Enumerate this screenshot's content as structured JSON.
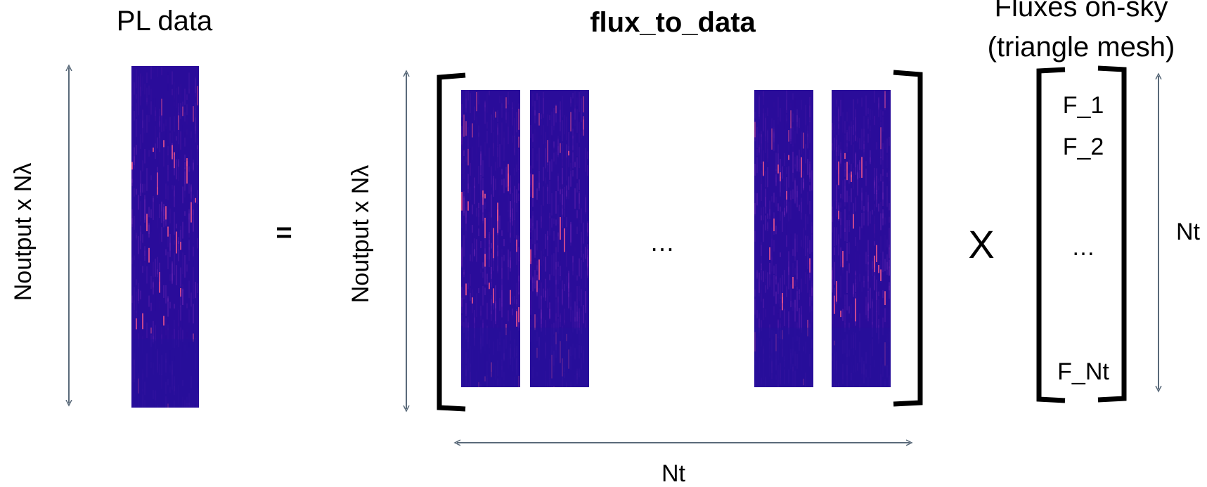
{
  "left": {
    "title": "PL data",
    "ylabel": "Noutput x Nλ"
  },
  "equals": "=",
  "middle": {
    "title": "flux_to_data",
    "ylabel": "Noutput x Nλ",
    "ellipsis": "…",
    "xlabel": "Nt"
  },
  "times": "X",
  "right": {
    "title_line1": "Fluxes on-sky",
    "title_line2": "(triangle mesh)",
    "entries": [
      "F_1",
      "F_2",
      "…",
      "F_Nt"
    ],
    "ylabel": "Nt"
  },
  "colors": {
    "arrow": "#5a6a7a",
    "bracket": "#000000",
    "panel_base": "#2a0c9a",
    "panel_hot": "#e0508c"
  }
}
